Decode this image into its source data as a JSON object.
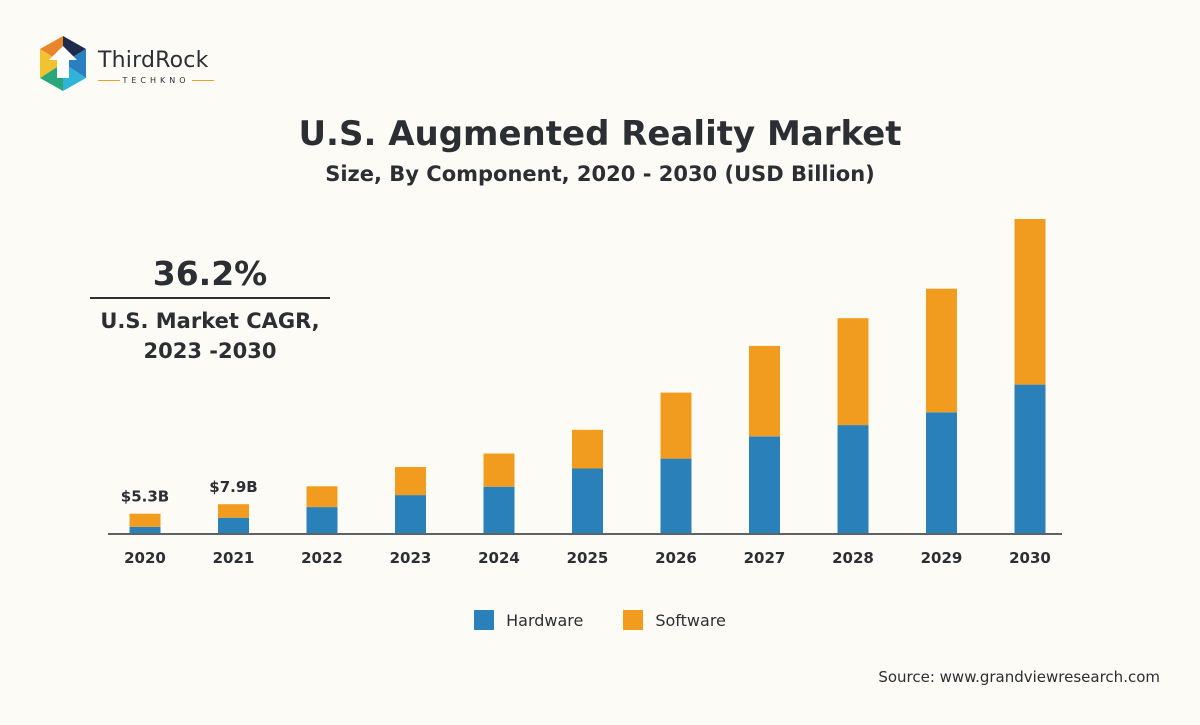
{
  "brand": {
    "name": "ThirdRock",
    "tagline": "TECHKNO"
  },
  "header": {
    "title": "U.S. Augmented Reality Market",
    "subtitle": "Size, By Component, 2020 - 2030 (USD Billion)"
  },
  "cagr": {
    "value": "36.2%",
    "label_line1": "U.S. Market CAGR,",
    "label_line2": "2023 -2030"
  },
  "source": "Source: www.grandviewresearch.com",
  "colors": {
    "hardware": "#2a80b9",
    "software": "#f29c1f",
    "axis": "#2b2f33"
  },
  "chart_data": {
    "type": "bar",
    "stacked": true,
    "categories": [
      "2020",
      "2021",
      "2022",
      "2023",
      "2024",
      "2025",
      "2026",
      "2027",
      "2028",
      "2029",
      "2030"
    ],
    "series": [
      {
        "name": "Hardware",
        "values": [
          1.7,
          4.2,
          7.1,
          10.4,
          12.7,
          17.7,
          20.4,
          26.5,
          29.6,
          33.1,
          40.7
        ]
      },
      {
        "name": "Software",
        "values": [
          3.6,
          3.7,
          5.7,
          7.7,
          9.1,
          10.6,
          18.1,
          24.8,
          29.3,
          33.9,
          45.4
        ]
      }
    ],
    "data_labels": [
      {
        "category": "2020",
        "text": "$5.3B"
      },
      {
        "category": "2021",
        "text": "$7.9B"
      }
    ],
    "ylim": [
      0,
      86.1
    ],
    "grid": false,
    "legend": "bottom-center"
  }
}
